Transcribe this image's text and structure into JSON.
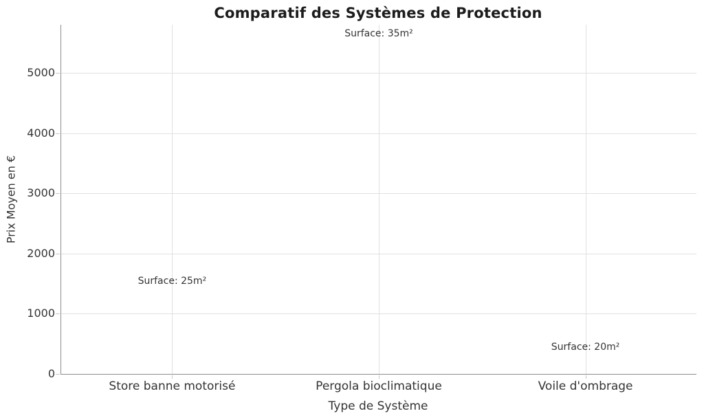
{
  "chart_data": {
    "type": "scatter",
    "title": "Comparatif des Systèmes de Protection",
    "xlabel": "Type de Système",
    "ylabel": "Prix Moyen en €",
    "categories": [
      "Store banne motorisé",
      "Pergola bioclimatique",
      "Voile d'ombrage"
    ],
    "yticks": [
      0,
      1000,
      2000,
      3000,
      4000,
      5000
    ],
    "ylim": [
      0,
      5800
    ],
    "grid": true,
    "legend": false,
    "markers_visible": false,
    "annotations": [
      {
        "text": "Surface: 25m²",
        "category": "Store banne motorisé",
        "category_index": 0,
        "y_value_approx": 1545
      },
      {
        "text": "Surface: 35m²",
        "category": "Pergola bioclimatique",
        "category_index": 1,
        "y_value_approx": 5650
      },
      {
        "text": "Surface: 20m²",
        "category": "Voile d'ombrage",
        "category_index": 2,
        "y_value_approx": 440
      }
    ],
    "colors": {
      "background": "#ffffff",
      "grid": "#e0e0e0",
      "spine": "#8c8c8c",
      "tick": "#c8c8c8",
      "text": "#333333",
      "title": "#1c1c1c"
    }
  }
}
